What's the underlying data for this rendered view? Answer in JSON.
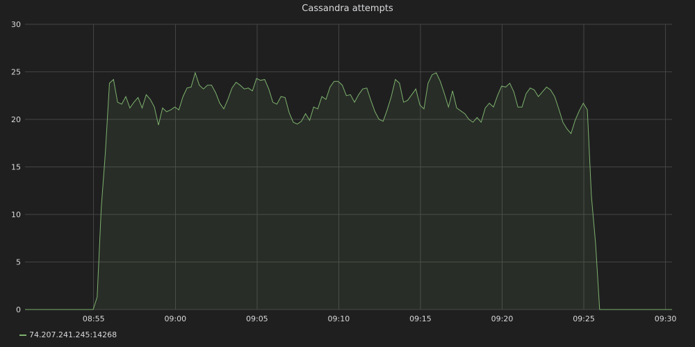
{
  "colors": {
    "background": "#1f1f20",
    "grid": "#444444",
    "series": "#7eb26d",
    "text": "#d8d9da"
  },
  "chart_data": {
    "type": "area",
    "title": "Cassandra attempts",
    "xlabel": "",
    "ylabel": "",
    "ylim": [
      0,
      30
    ],
    "yticks": [
      "0",
      "5",
      "10",
      "15",
      "20",
      "25",
      "30"
    ],
    "xticks": [
      "08:55",
      "09:00",
      "09:05",
      "09:10",
      "09:15",
      "09:20",
      "09:25",
      "09:30"
    ],
    "xlim_minutes": [
      "08:50:48",
      "09:30:24"
    ],
    "grid": true,
    "legend_position": "bottom-left",
    "series": [
      {
        "name": "74.207.241.245:14268",
        "color": "#7eb26d",
        "points": [
          [
            "08:50:48",
            0
          ],
          [
            "08:54:58",
            0
          ],
          [
            "08:55:13",
            1.3
          ],
          [
            "08:55:28",
            10.7
          ],
          [
            "08:55:43",
            16.5
          ],
          [
            "08:55:58",
            23.8
          ],
          [
            "08:56:13",
            24.2
          ],
          [
            "08:56:28",
            21.8
          ],
          [
            "08:56:43",
            21.6
          ],
          [
            "08:56:58",
            22.4
          ],
          [
            "08:57:13",
            21.2
          ],
          [
            "08:57:28",
            21.8
          ],
          [
            "08:57:43",
            22.3
          ],
          [
            "08:57:58",
            21.2
          ],
          [
            "08:58:13",
            22.6
          ],
          [
            "08:58:28",
            22.1
          ],
          [
            "08:58:43",
            21.3
          ],
          [
            "08:58:58",
            19.4
          ],
          [
            "08:59:13",
            21.2
          ],
          [
            "08:59:28",
            20.8
          ],
          [
            "08:59:43",
            21.0
          ],
          [
            "08:59:58",
            21.3
          ],
          [
            "09:00:13",
            21.0
          ],
          [
            "09:00:28",
            22.4
          ],
          [
            "09:00:43",
            23.3
          ],
          [
            "09:00:58",
            23.4
          ],
          [
            "09:01:13",
            24.9
          ],
          [
            "09:01:28",
            23.6
          ],
          [
            "09:01:43",
            23.2
          ],
          [
            "09:01:58",
            23.6
          ],
          [
            "09:02:13",
            23.6
          ],
          [
            "09:02:28",
            22.8
          ],
          [
            "09:02:43",
            21.7
          ],
          [
            "09:02:58",
            21.1
          ],
          [
            "09:03:13",
            22.1
          ],
          [
            "09:03:28",
            23.3
          ],
          [
            "09:03:43",
            23.9
          ],
          [
            "09:03:58",
            23.6
          ],
          [
            "09:04:13",
            23.2
          ],
          [
            "09:04:28",
            23.3
          ],
          [
            "09:04:43",
            23.0
          ],
          [
            "09:04:58",
            24.3
          ],
          [
            "09:05:13",
            24.1
          ],
          [
            "09:05:28",
            24.2
          ],
          [
            "09:05:43",
            23.2
          ],
          [
            "09:05:58",
            21.8
          ],
          [
            "09:06:13",
            21.6
          ],
          [
            "09:06:28",
            22.4
          ],
          [
            "09:06:43",
            22.3
          ],
          [
            "09:06:58",
            20.7
          ],
          [
            "09:07:13",
            19.7
          ],
          [
            "09:07:28",
            19.5
          ],
          [
            "09:07:43",
            19.8
          ],
          [
            "09:07:58",
            20.6
          ],
          [
            "09:08:13",
            19.9
          ],
          [
            "09:08:28",
            21.3
          ],
          [
            "09:08:43",
            21.1
          ],
          [
            "09:08:58",
            22.4
          ],
          [
            "09:09:13",
            22.1
          ],
          [
            "09:09:28",
            23.4
          ],
          [
            "09:09:43",
            24.0
          ],
          [
            "09:09:58",
            24.0
          ],
          [
            "09:10:13",
            23.6
          ],
          [
            "09:10:28",
            22.5
          ],
          [
            "09:10:43",
            22.6
          ],
          [
            "09:10:58",
            21.8
          ],
          [
            "09:11:13",
            22.6
          ],
          [
            "09:11:28",
            23.2
          ],
          [
            "09:11:43",
            23.3
          ],
          [
            "09:11:58",
            22.0
          ],
          [
            "09:12:13",
            20.8
          ],
          [
            "09:12:28",
            20.0
          ],
          [
            "09:12:43",
            19.8
          ],
          [
            "09:12:58",
            21.0
          ],
          [
            "09:13:13",
            22.4
          ],
          [
            "09:13:28",
            24.2
          ],
          [
            "09:13:43",
            23.8
          ],
          [
            "09:13:58",
            21.8
          ],
          [
            "09:14:13",
            22.0
          ],
          [
            "09:14:28",
            22.6
          ],
          [
            "09:14:43",
            23.2
          ],
          [
            "09:14:58",
            21.5
          ],
          [
            "09:15:13",
            21.1
          ],
          [
            "09:15:28",
            23.8
          ],
          [
            "09:15:43",
            24.7
          ],
          [
            "09:15:58",
            24.9
          ],
          [
            "09:16:13",
            24.0
          ],
          [
            "09:16:28",
            22.7
          ],
          [
            "09:16:43",
            21.3
          ],
          [
            "09:16:58",
            23.0
          ],
          [
            "09:17:13",
            21.2
          ],
          [
            "09:17:28",
            20.9
          ],
          [
            "09:17:43",
            20.6
          ],
          [
            "09:17:58",
            20.0
          ],
          [
            "09:18:13",
            19.7
          ],
          [
            "09:18:28",
            20.2
          ],
          [
            "09:18:43",
            19.7
          ],
          [
            "09:18:58",
            21.2
          ],
          [
            "09:19:13",
            21.7
          ],
          [
            "09:19:28",
            21.3
          ],
          [
            "09:19:43",
            22.5
          ],
          [
            "09:19:58",
            23.5
          ],
          [
            "09:20:13",
            23.4
          ],
          [
            "09:20:28",
            23.8
          ],
          [
            "09:20:43",
            22.9
          ],
          [
            "09:20:58",
            21.3
          ],
          [
            "09:21:13",
            21.3
          ],
          [
            "09:21:28",
            22.7
          ],
          [
            "09:21:43",
            23.3
          ],
          [
            "09:21:58",
            23.1
          ],
          [
            "09:22:13",
            22.4
          ],
          [
            "09:22:28",
            22.9
          ],
          [
            "09:22:43",
            23.4
          ],
          [
            "09:22:58",
            23.1
          ],
          [
            "09:23:13",
            22.4
          ],
          [
            "09:23:28",
            21.1
          ],
          [
            "09:23:43",
            19.7
          ],
          [
            "09:23:58",
            19.0
          ],
          [
            "09:24:13",
            18.5
          ],
          [
            "09:24:28",
            19.9
          ],
          [
            "09:24:43",
            20.9
          ],
          [
            "09:24:58",
            21.7
          ],
          [
            "09:25:13",
            21.0
          ],
          [
            "09:25:28",
            11.9
          ],
          [
            "09:25:43",
            7.0
          ],
          [
            "09:25:58",
            0
          ],
          [
            "09:30:24",
            0
          ]
        ]
      }
    ]
  }
}
